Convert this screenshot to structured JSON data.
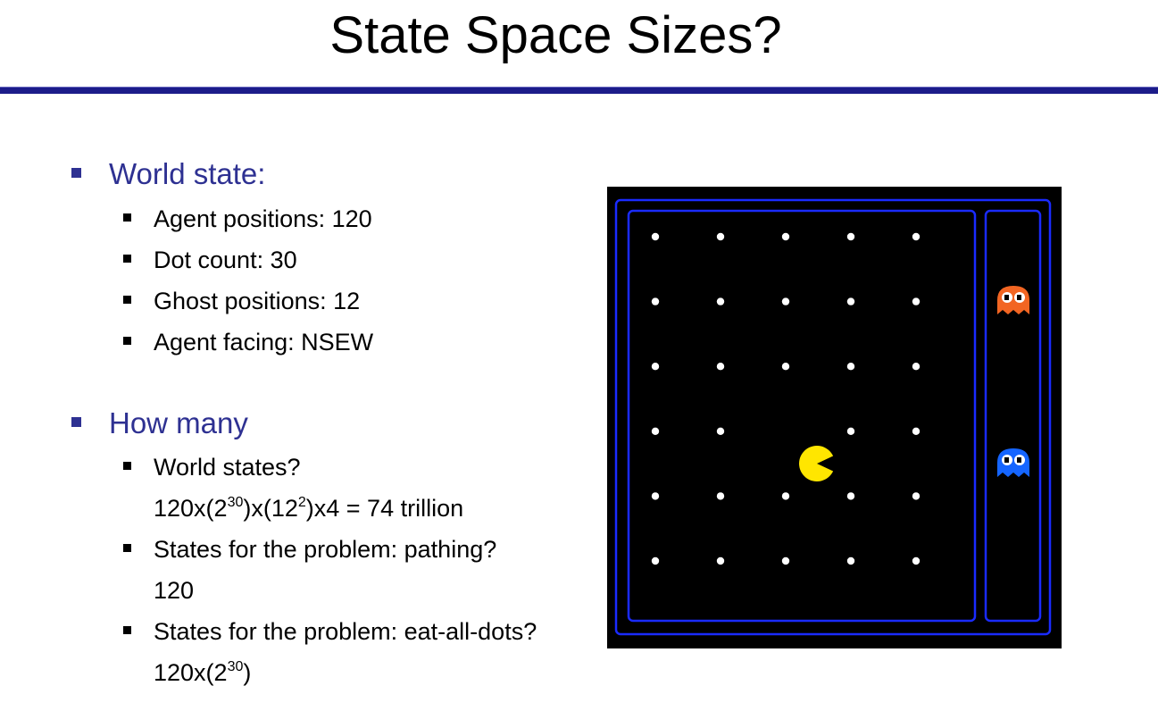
{
  "slide": {
    "title": "State Space Sizes?"
  },
  "world_state": {
    "heading": "World state:",
    "items": [
      "Agent positions: 120",
      "Dot count: 30",
      "Ghost positions: 12",
      "Agent facing: NSEW"
    ]
  },
  "how_many": {
    "heading": "How many",
    "q1": "World states?",
    "a1": {
      "p1": "120x(2",
      "s1": "30",
      "p2": ")x(12",
      "s2": "2",
      "p3": ")x4 = 74 trillion"
    },
    "q2": "States for the problem: pathing?",
    "a2": "120",
    "q3": "States for the problem: eat-all-dots?",
    "a3": {
      "p1": "120x(2",
      "s1": "30",
      "p2": ")"
    }
  },
  "game": {
    "dot_columns": 5,
    "dot_rows": 6,
    "missing_dot": {
      "row": 4,
      "col": 2
    },
    "pacman_position": {
      "row": 4,
      "col": 2
    },
    "ghosts": [
      {
        "color": "#f26522",
        "name": "orange-ghost"
      },
      {
        "color": "#1565ff",
        "name": "blue-ghost"
      }
    ],
    "colors": {
      "wall": "#1a2bff",
      "background": "#000000",
      "dot": "#ffffff",
      "pacman": "#ffe600"
    }
  }
}
